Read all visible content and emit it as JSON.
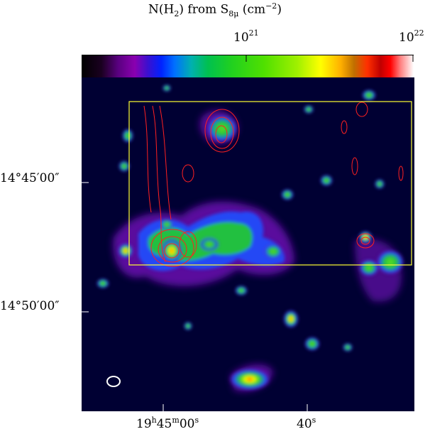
{
  "title": {
    "main": "N(H",
    "sub": "2",
    "mid": ") from S",
    "sub2": "8μ",
    "unit": " (cm",
    "exp": "−2",
    "close": ")"
  },
  "colorbar": {
    "tick_low": {
      "base": "10",
      "exp": "21"
    },
    "tick_high": {
      "base": "10",
      "exp": "22"
    }
  },
  "axes": {
    "dec_a": {
      "text": "14°45′00″"
    },
    "dec_b": {
      "text": "14°50′00″"
    },
    "ra_a": {
      "h": "19",
      "hs": "h",
      "m": "45",
      "ms": "m",
      "s": "00",
      "ss": "s"
    },
    "ra_b": {
      "s": "40",
      "ss": "s"
    }
  },
  "colors": {
    "background": "#000033",
    "box": "#ffff33",
    "contour": "#ff2020",
    "beam": "#ffffff"
  }
}
